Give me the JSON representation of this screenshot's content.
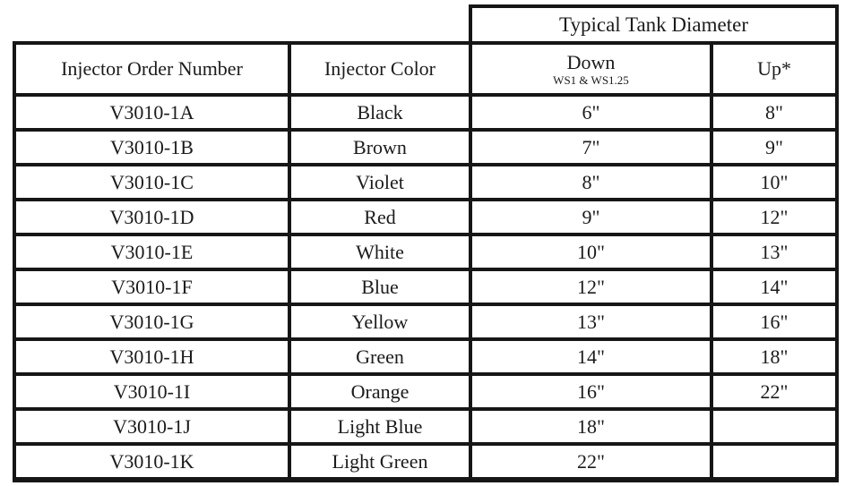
{
  "table": {
    "span_header": "Typical Tank Diameter",
    "columns": [
      {
        "label": "Injector Order Number"
      },
      {
        "label": "Injector Color"
      },
      {
        "label": "Down",
        "sublabel": "WS1 & WS1.25"
      },
      {
        "label": "Up*"
      }
    ],
    "rows": [
      {
        "order_number": "V3010-1A",
        "color": "Black",
        "down": "6\"",
        "up": "8\""
      },
      {
        "order_number": "V3010-1B",
        "color": "Brown",
        "down": "7\"",
        "up": "9\""
      },
      {
        "order_number": "V3010-1C",
        "color": "Violet",
        "down": "8\"",
        "up": "10\""
      },
      {
        "order_number": "V3010-1D",
        "color": "Red",
        "down": "9\"",
        "up": "12\""
      },
      {
        "order_number": "V3010-1E",
        "color": "White",
        "down": "10\"",
        "up": "13\""
      },
      {
        "order_number": "V3010-1F",
        "color": "Blue",
        "down": "12\"",
        "up": "14\""
      },
      {
        "order_number": "V3010-1G",
        "color": "Yellow",
        "down": "13\"",
        "up": "16\""
      },
      {
        "order_number": "V3010-1H",
        "color": "Green",
        "down": "14\"",
        "up": "18\""
      },
      {
        "order_number": "V3010-1I",
        "color": "Orange",
        "down": "16\"",
        "up": "22\""
      },
      {
        "order_number": "V3010-1J",
        "color": "Light Blue",
        "down": "18\"",
        "up": ""
      },
      {
        "order_number": "V3010-1K",
        "color": "Light Green",
        "down": "22\"",
        "up": ""
      }
    ]
  },
  "colors": {
    "border": "#161616",
    "text": "#1b1b1b",
    "background": "#ffffff"
  }
}
